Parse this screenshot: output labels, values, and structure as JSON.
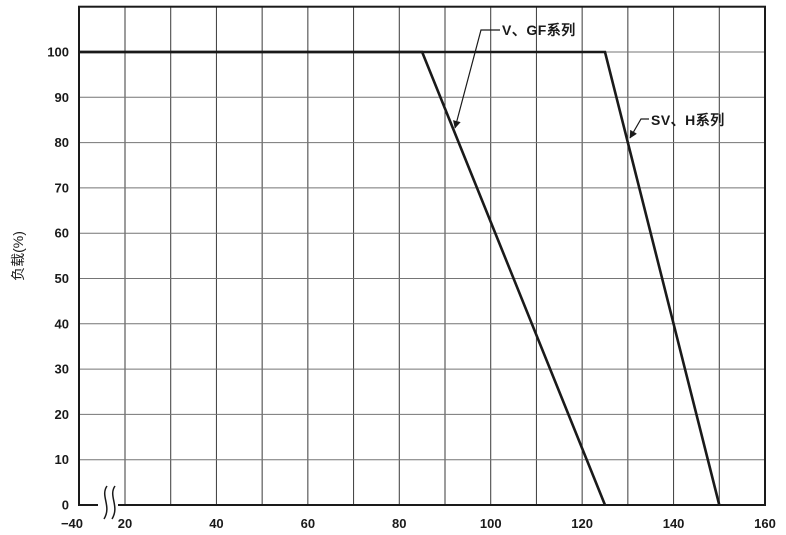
{
  "chart_data": {
    "type": "line",
    "title": "",
    "xlabel": "",
    "ylabel": "负载(%)",
    "xlim": [
      -40,
      160
    ],
    "ylim": [
      0,
      110
    ],
    "grid": {
      "x_spacing": 10,
      "y_spacing": 10,
      "grid_on": true
    },
    "axis_break": {
      "axis": "x",
      "between": [
        -40,
        20
      ]
    },
    "line_color": "#1a1a1a",
    "grid_color_vertical": "#3a3a3a",
    "grid_color_horizontal": "#757575",
    "x_ticks": [
      {
        "value": -40,
        "label": "−40"
      },
      {
        "value": 20,
        "label": "20"
      },
      {
        "value": 40,
        "label": "40"
      },
      {
        "value": 60,
        "label": "60"
      },
      {
        "value": 80,
        "label": "80"
      },
      {
        "value": 100,
        "label": "100"
      },
      {
        "value": 120,
        "label": "120"
      },
      {
        "value": 140,
        "label": "140"
      },
      {
        "value": 160,
        "label": "160"
      }
    ],
    "y_ticks": [
      {
        "value": 0,
        "label": "0"
      },
      {
        "value": 10,
        "label": "10"
      },
      {
        "value": 20,
        "label": "20"
      },
      {
        "value": 30,
        "label": "30"
      },
      {
        "value": 40,
        "label": "40"
      },
      {
        "value": 50,
        "label": "50"
      },
      {
        "value": 60,
        "label": "60"
      },
      {
        "value": 70,
        "label": "70"
      },
      {
        "value": 80,
        "label": "80"
      },
      {
        "value": 90,
        "label": "90"
      },
      {
        "value": 100,
        "label": "100"
      }
    ],
    "series": [
      {
        "name": "V、GF系列",
        "points": [
          [
            -40,
            100
          ],
          [
            85,
            100
          ],
          [
            125,
            0
          ]
        ]
      },
      {
        "name": "SV、H系列",
        "points": [
          [
            -40,
            100
          ],
          [
            125,
            100
          ],
          [
            150,
            0
          ]
        ]
      }
    ],
    "annotations": [
      {
        "label": "V、GF系列",
        "points_to": "V-GF derating line"
      },
      {
        "label": "SV、H系列",
        "points_to": "SV-H derating line"
      }
    ]
  }
}
